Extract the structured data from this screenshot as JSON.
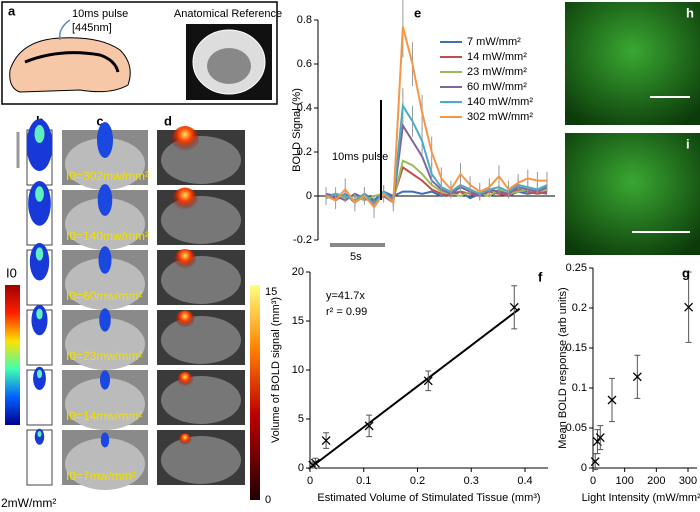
{
  "panels": {
    "a": {
      "label": "a",
      "pulse": [
        "10ms pulse",
        "[445nm]"
      ],
      "reference": "Anatomical Reference"
    },
    "bcd": {
      "labels": [
        "b",
        "c",
        "d"
      ],
      "intensities": [
        "I0=302mw/mm²",
        "I0=140mw/mm²",
        "I0=60mw/mm²",
        "I0=23mw/mm²",
        "I0=14mw/mm²",
        "I0=7mw/mm²"
      ],
      "colorbar_title": "I0",
      "colorbar_min": "2mW/mm²",
      "bold_colorbar": [
        15,
        0
      ]
    },
    "h": "h",
    "i": "i"
  },
  "chart_data": [
    {
      "type": "line",
      "label": "e",
      "ylabel": "BOLD Signal (%)",
      "annotations": [
        "10ms pulse",
        "5s"
      ],
      "ylim": [
        -0.2,
        0.8
      ],
      "yticks": [
        -0.2,
        0,
        0.2,
        0.4,
        0.6,
        0.8
      ],
      "series": [
        {
          "name": "7 mW/mm²",
          "color": "#3f6fb5",
          "values": [
            0,
            -0.02,
            0.01,
            -0.03,
            0.01,
            -0.02,
            0.02,
            0,
            0.02,
            0.02,
            0.01,
            0.02,
            0,
            0.01,
            0.02,
            -0.01,
            0.01,
            0,
            0.02,
            0,
            0.02,
            0.01,
            0.02,
            0.01
          ]
        },
        {
          "name": "14 mW/mm²",
          "color": "#c0504d",
          "values": [
            0.01,
            -0.01,
            0,
            -0.02,
            0,
            -0.03,
            0.01,
            -0.01,
            0.13,
            0.1,
            0.07,
            0.03,
            0.01,
            0,
            0.02,
            0.01,
            0,
            0.02,
            0.01,
            0,
            0.03,
            0.02,
            0.01,
            0.02
          ]
        },
        {
          "name": "23 mW/mm²",
          "color": "#9bbb59",
          "values": [
            0,
            0.01,
            -0.01,
            0,
            -0.02,
            0,
            0.01,
            -0.02,
            0.16,
            0.14,
            0.1,
            0.05,
            0.02,
            0.01,
            0,
            0.02,
            0.01,
            0,
            0.03,
            0.01,
            0.02,
            0.03,
            0.02,
            0.03
          ]
        },
        {
          "name": "60 mW/mm²",
          "color": "#8064a2",
          "values": [
            0.01,
            0,
            -0.02,
            0.01,
            -0.01,
            -0.03,
            0,
            -0.03,
            0.32,
            0.25,
            0.18,
            0.07,
            0.03,
            0.01,
            0.04,
            0.02,
            0,
            0.03,
            0.02,
            0.01,
            0.04,
            0.03,
            0.02,
            0.04
          ]
        },
        {
          "name": "140 mW/mm²",
          "color": "#4bacc6",
          "values": [
            -0.01,
            0.01,
            0,
            -0.02,
            0.01,
            -0.04,
            0.02,
            -0.02,
            0.41,
            0.34,
            0.25,
            0.1,
            0.04,
            0.02,
            0.05,
            0.03,
            0.01,
            0.03,
            0.04,
            0.02,
            0.05,
            0.04,
            0.03,
            0.05
          ],
          "errors": [
            0.03,
            0.03,
            0.03,
            0.03,
            0.03,
            0.03,
            0.03,
            0.03,
            0.08,
            0.07,
            0.06,
            0.05,
            0.04,
            0.03,
            0.04,
            0.03,
            0.03,
            0.03,
            0.03,
            0.03,
            0.03,
            0.03,
            0.03,
            0.03
          ]
        },
        {
          "name": "302 mW/mm²",
          "color": "#f79646",
          "values": [
            0,
            -0.02,
            0.03,
            -0.03,
            0,
            -0.05,
            0.01,
            -0.03,
            0.77,
            0.6,
            0.38,
            0.2,
            0.08,
            0.03,
            0.1,
            0.05,
            0.02,
            0.04,
            0.09,
            0.03,
            0.06,
            0.08,
            0.07,
            0.07
          ],
          "errors": [
            0.04,
            0.04,
            0.05,
            0.04,
            0.04,
            0.05,
            0.04,
            0.04,
            0.14,
            0.1,
            0.08,
            0.07,
            0.05,
            0.04,
            0.05,
            0.04,
            0.04,
            0.04,
            0.05,
            0.04,
            0.04,
            0.04,
            0.04,
            0.04
          ]
        }
      ]
    },
    {
      "type": "scatter",
      "label": "f",
      "xlabel": "Estimated Volume of Stimulated Tissue (mm³)",
      "ylabel": "Volume of BOLD signal (mm³)",
      "annotations": [
        "y=41.7x",
        "r² = 0.99"
      ],
      "xlim": [
        0,
        0.4
      ],
      "xticks": [
        0,
        0.1,
        0.2,
        0.3,
        0.4
      ],
      "ylim": [
        0,
        20
      ],
      "yticks": [
        0,
        5,
        10,
        15,
        20
      ],
      "x": [
        0.005,
        0.01,
        0.03,
        0.11,
        0.22,
        0.38
      ],
      "values": [
        0.3,
        0.5,
        2.8,
        4.3,
        8.9,
        16.4
      ],
      "errors": [
        0.3,
        0.5,
        0.8,
        1.1,
        1.0,
        2.2
      ],
      "fit_line": {
        "x": [
          0,
          0.39
        ],
        "values": [
          0,
          16.26
        ]
      }
    },
    {
      "type": "scatter",
      "label": "g",
      "xlabel": "Light Intensity (mW/mm²)",
      "ylabel": "Mean BOLD response (arb units)",
      "xlim": [
        0,
        300
      ],
      "xticks": [
        0,
        100,
        200,
        300
      ],
      "ylim": [
        0,
        0.25
      ],
      "yticks": [
        0,
        0.05,
        0.1,
        0.15,
        0.2,
        0.25
      ],
      "x": [
        7,
        14,
        23,
        60,
        140,
        302
      ],
      "values": [
        0.008,
        0.033,
        0.038,
        0.085,
        0.114,
        0.201
      ],
      "errors": [
        0.01,
        0.015,
        0.015,
        0.027,
        0.027,
        0.044
      ]
    }
  ]
}
